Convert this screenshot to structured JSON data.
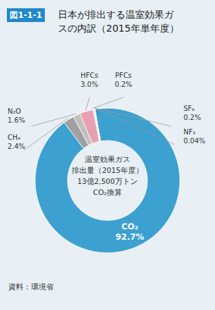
{
  "chart_data": {
    "type": "pie",
    "title": "日本が排出する温室効果ガ\nスの内訳（2015年単年度）",
    "categories": [
      "CO₂",
      "CH₄",
      "N₂O",
      "HFCs",
      "PFCs",
      "SF₆",
      "NF₃"
    ],
    "values": [
      92.7,
      2.4,
      1.6,
      3.0,
      0.2,
      0.2,
      0.04
    ],
    "value_labels": [
      "92.7%",
      "2.4%",
      "1.6%",
      "3.0%",
      "0.2%",
      "0.2%",
      "0.04%"
    ],
    "colors": [
      "#3ca0d0",
      "#a0a0a0",
      "#c0c0c0",
      "#e8a0b0",
      "#b8a8d8",
      "#c8dcea",
      "#e8e0b0"
    ],
    "data_labels": true,
    "annotations": [
      "図1-1-1",
      "温室効果ガス",
      "排出量（2015年度）",
      "13億2,500万トン",
      "CO₂換算",
      "資料：環境省"
    ]
  }
}
